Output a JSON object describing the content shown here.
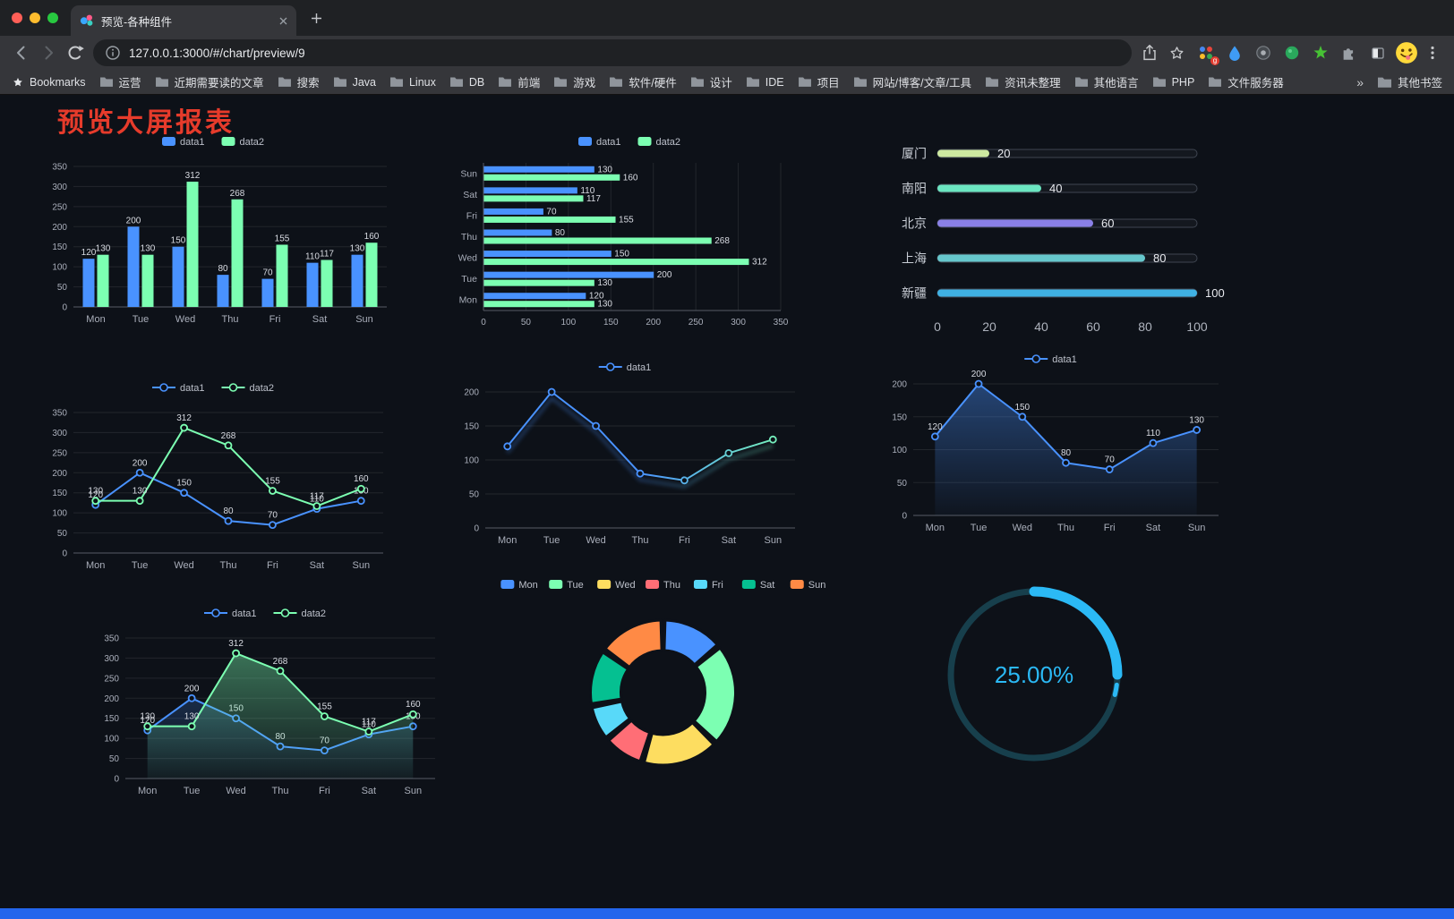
{
  "browser": {
    "tab": {
      "title": "预览-各种组件"
    },
    "url": "127.0.0.1:3000/#/chart/preview/9",
    "extension_badge": "g",
    "bookmarks_bar": {
      "label": "Bookmarks",
      "folders": [
        "运营",
        "近期需要读的文章",
        "搜索",
        "Java",
        "Linux",
        "DB",
        "前端",
        "游戏",
        "软件/硬件",
        "设计",
        "IDE",
        "项目",
        "网站/博客/文章/工具",
        "资讯未整理",
        "其他语言",
        "PHP",
        "文件服务器"
      ],
      "overflow": "»",
      "other": "其他书签"
    }
  },
  "page": {
    "title": "预览大屏报表",
    "title_color": "#e63b2b",
    "background": "#0d1118",
    "footer_color": "#2365ec"
  },
  "chart_data": [
    {
      "id": "grouped-bar",
      "type": "bar",
      "orientation": "vertical",
      "categories": [
        "Mon",
        "Tue",
        "Wed",
        "Thu",
        "Fri",
        "Sat",
        "Sun"
      ],
      "series": [
        {
          "name": "data1",
          "color": "#4992ff",
          "values": [
            120,
            200,
            150,
            80,
            70,
            110,
            130
          ]
        },
        {
          "name": "data2",
          "color": "#7cffb2",
          "values": [
            130,
            130,
            312,
            268,
            155,
            117,
            160
          ]
        }
      ],
      "ylim": [
        0,
        350
      ],
      "ytick_step": 50,
      "value_labels": true,
      "legend": [
        "data1",
        "data2"
      ],
      "legend_position": "top",
      "grid": true
    },
    {
      "id": "horizontal-bar",
      "type": "bar",
      "orientation": "horizontal",
      "categories": [
        "Mon",
        "Tue",
        "Wed",
        "Thu",
        "Fri",
        "Sat",
        "Sun"
      ],
      "series": [
        {
          "name": "data1",
          "color": "#4992ff",
          "values": [
            120,
            200,
            150,
            80,
            70,
            110,
            130
          ]
        },
        {
          "name": "data2",
          "color": "#7cffb2",
          "values": [
            130,
            130,
            312,
            268,
            155,
            117,
            160
          ]
        }
      ],
      "xlim": [
        0,
        350
      ],
      "xtick_step": 50,
      "value_labels": true,
      "legend": [
        "data1",
        "data2"
      ],
      "legend_position": "top",
      "grid": true
    },
    {
      "id": "progress-bar",
      "type": "bar",
      "orientation": "horizontal",
      "variant": "progress",
      "categories": [
        "厦门",
        "南阳",
        "北京",
        "上海",
        "新疆"
      ],
      "values": [
        20,
        40,
        60,
        80,
        100
      ],
      "colors": [
        "#cde9a0",
        "#6be6c1",
        "#8a80e6",
        "#66c7cc",
        "#3fb1e3"
      ],
      "xlim": [
        0,
        100
      ],
      "xticks": [
        0,
        20,
        40,
        60,
        80,
        100
      ],
      "value_labels": true
    },
    {
      "id": "multi-line",
      "type": "line",
      "categories": [
        "Mon",
        "Tue",
        "Wed",
        "Thu",
        "Fri",
        "Sat",
        "Sun"
      ],
      "series": [
        {
          "name": "data1",
          "color": "#4992ff",
          "values": [
            120,
            200,
            150,
            80,
            70,
            110,
            130
          ],
          "labels": true
        },
        {
          "name": "data2",
          "color": "#7cffb2",
          "values": [
            130,
            130,
            312,
            268,
            155,
            117,
            160
          ],
          "labels": true
        }
      ],
      "ylim": [
        0,
        350
      ],
      "ytick_step": 50,
      "legend": [
        "data1",
        "data2"
      ],
      "legend_position": "top",
      "grid": true
    },
    {
      "id": "gradient-line",
      "type": "line",
      "categories": [
        "Mon",
        "Tue",
        "Wed",
        "Thu",
        "Fri",
        "Sat",
        "Sun"
      ],
      "series": [
        {
          "name": "data1",
          "gradient": {
            "from": "#4992ff",
            "to": "#7cffb2"
          },
          "values": [
            120,
            200,
            150,
            80,
            70,
            110,
            130
          ],
          "labels": false,
          "shadow": true
        }
      ],
      "ylim": [
        0,
        200
      ],
      "ytick_step": 50,
      "legend": [
        "data1"
      ],
      "legend_position": "top",
      "grid": true
    },
    {
      "id": "single-area",
      "type": "area",
      "categories": [
        "Mon",
        "Tue",
        "Wed",
        "Thu",
        "Fri",
        "Sat",
        "Sun"
      ],
      "series": [
        {
          "name": "data1",
          "color": "#4992ff",
          "values": [
            120,
            200,
            150,
            80,
            70,
            110,
            130
          ],
          "labels": true,
          "area": {
            "top": "rgba(73,146,255,0.40)",
            "bottom": "rgba(73,146,255,0.03)"
          }
        }
      ],
      "ylim": [
        0,
        200
      ],
      "ytick_step": 50,
      "legend": [
        "data1"
      ],
      "legend_position": "top",
      "grid": true
    },
    {
      "id": "double-area",
      "type": "area",
      "categories": [
        "Mon",
        "Tue",
        "Wed",
        "Thu",
        "Fri",
        "Sat",
        "Sun"
      ],
      "series": [
        {
          "name": "data1",
          "color": "#4992ff",
          "values": [
            120,
            200,
            150,
            80,
            70,
            110,
            130
          ],
          "labels": true,
          "area": {
            "top": "rgba(73,146,255,0.35)",
            "bottom": "rgba(73,146,255,0.02)"
          }
        },
        {
          "name": "data2",
          "color": "#7cffb2",
          "values": [
            130,
            130,
            312,
            268,
            155,
            117,
            160
          ],
          "labels": true,
          "area": {
            "top": "rgba(124,255,178,0.45)",
            "bottom": "rgba(124,255,178,0.04)"
          }
        }
      ],
      "ylim": [
        0,
        350
      ],
      "ytick_step": 50,
      "legend": [
        "data1",
        "data2"
      ],
      "legend_position": "top",
      "grid": true
    },
    {
      "id": "donut-pie",
      "type": "pie",
      "labels": [
        "Mon",
        "Tue",
        "Wed",
        "Thu",
        "Fri",
        "Sat",
        "Sun"
      ],
      "values": [
        120,
        200,
        150,
        80,
        70,
        110,
        130
      ],
      "colors": [
        "#4992ff",
        "#7cffb2",
        "#fddd60",
        "#ff6e76",
        "#58d9f9",
        "#05c091",
        "#ff8a45"
      ],
      "inner_radius_ratio": 0.58,
      "legend_position": "top"
    },
    {
      "id": "gauge-progress",
      "type": "gauge",
      "value": 25,
      "display": "25.00%",
      "color": "#2bb9f5",
      "track_color": "#173f4c"
    }
  ]
}
